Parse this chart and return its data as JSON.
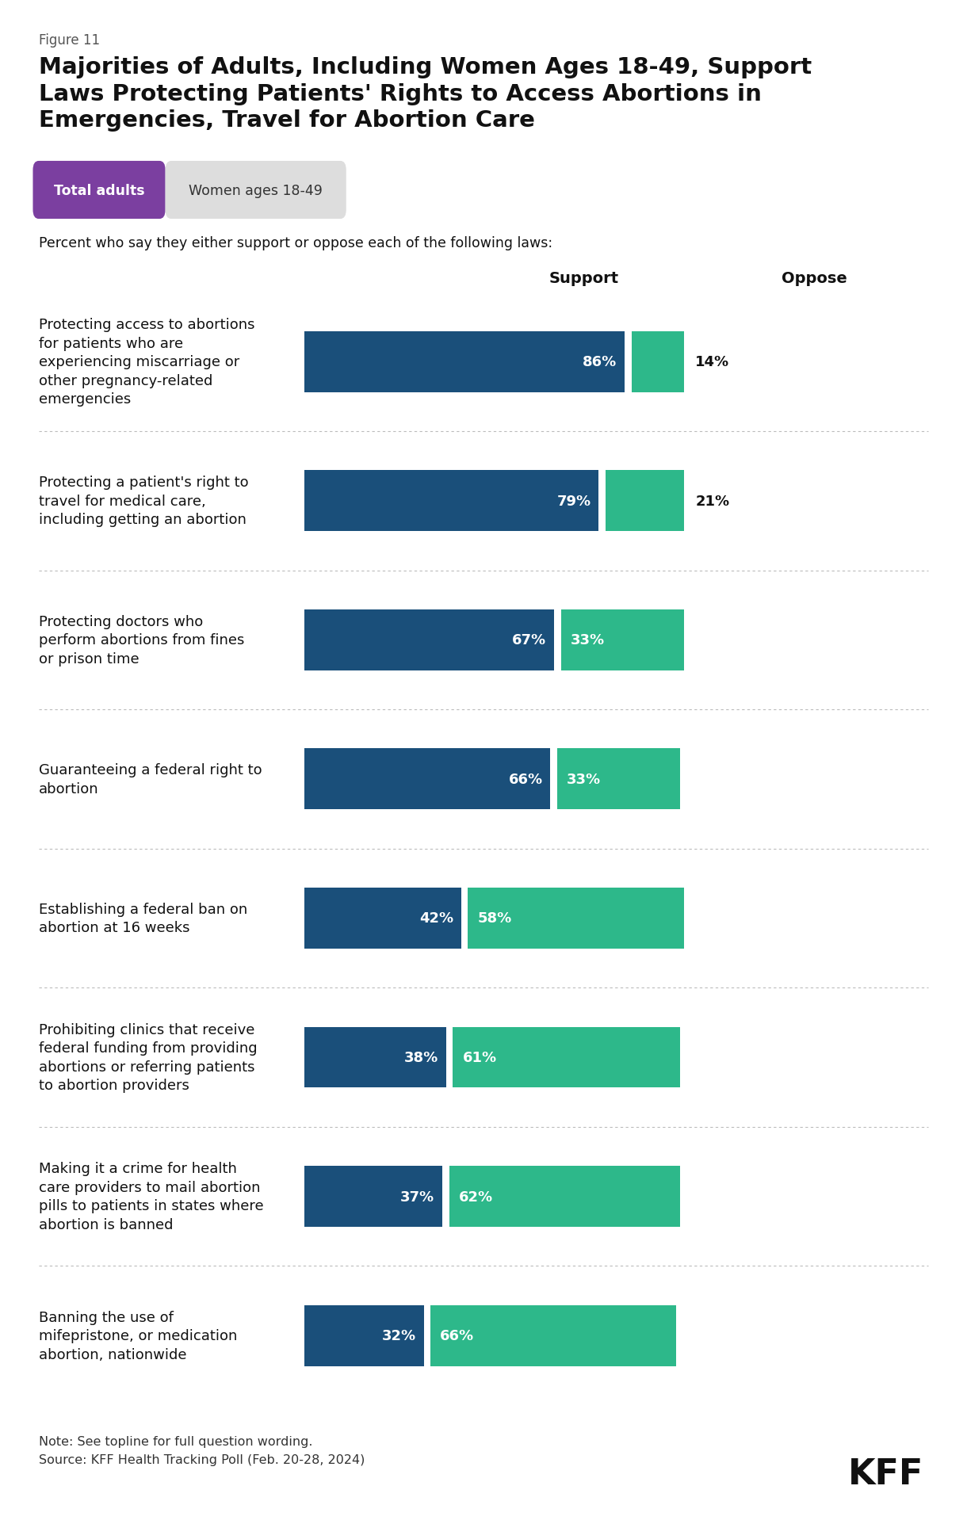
{
  "figure_label": "Figure 11",
  "title": "Majorities of Adults, Including Women Ages 18-49, Support\nLaws Protecting Patients' Rights to Access Abortions in\nEmergencies, Travel for Abortion Care",
  "legend_labels": [
    "Total adults",
    "Women ages 18-49"
  ],
  "legend_colors": [
    "#7B3FA0",
    "#DDDDDD"
  ],
  "subtitle": "Percent who say they either support or oppose each of the following laws:",
  "col_headers": [
    "Support",
    "Oppose"
  ],
  "categories": [
    "Protecting access to abortions\nfor patients who are\nexperiencing miscarriage or\nother pregnancy-related\nemergencies",
    "Protecting a patient's right to\ntravel for medical care,\nincluding getting an abortion",
    "Protecting doctors who\nperform abortions from fines\nor prison time",
    "Guaranteeing a federal right to\nabortion",
    "Establishing a federal ban on\nabortion at 16 weeks",
    "Prohibiting clinics that receive\nfederal funding from providing\nabortions or referring patients\nto abortion providers",
    "Making it a crime for health\ncare providers to mail abortion\npills to patients in states where\nabortion is banned",
    "Banning the use of\nmifepristone, or medication\nabortion, nationwide"
  ],
  "support": [
    86,
    79,
    67,
    66,
    42,
    38,
    37,
    32
  ],
  "oppose": [
    14,
    21,
    33,
    33,
    58,
    61,
    62,
    66
  ],
  "support_color": "#1A4F7A",
  "oppose_color": "#2DB88A",
  "note": "Note: See topline for full question wording.\nSource: KFF Health Tracking Poll (Feb. 20-28, 2024)",
  "kff_logo": "KFF",
  "bg_color": "#FFFFFF",
  "oppose_outside_threshold": 22
}
